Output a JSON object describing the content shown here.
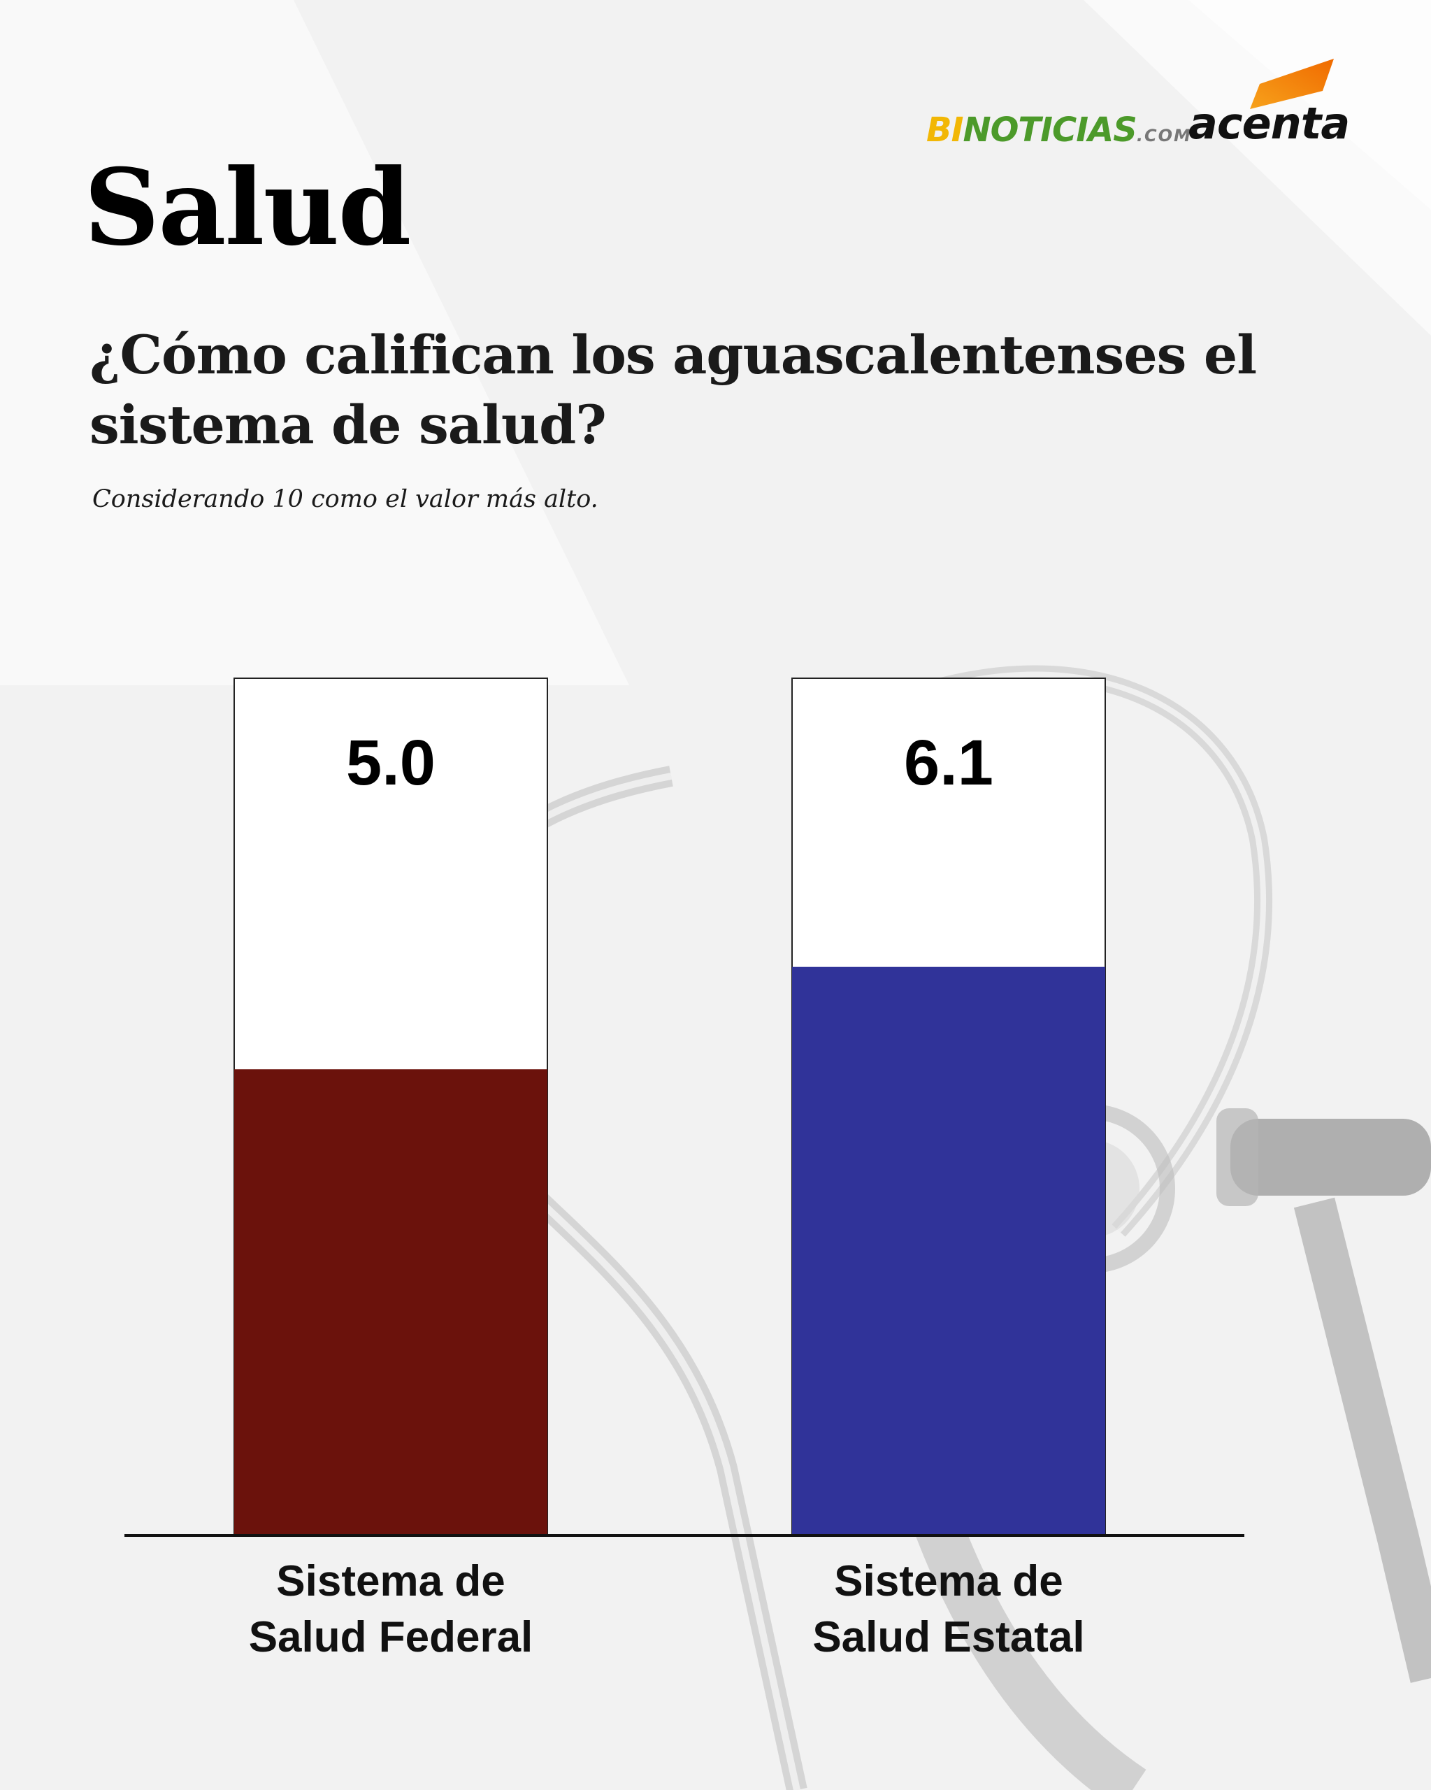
{
  "brand": {
    "bi_prefix": "BI",
    "bi_main": "NOTICIAS",
    "bi_suffix": ".COM",
    "acenta": "acenta",
    "colors": {
      "bi_yellow": "#f2b705",
      "bi_green": "#4c9a2a",
      "acenta_orange": "#f39200"
    }
  },
  "section": "Salud",
  "title": "¿Cómo califican los aguascalentenses el sistema de salud?",
  "subtitle": "Considerando 10 como el valor más alto.",
  "chart_data": {
    "type": "bar",
    "categories": [
      "Sistema de Salud Federal",
      "Sistema de Salud Estatal"
    ],
    "category_lines": [
      [
        "Sistema de",
        "Salud Federal"
      ],
      [
        "Sistema de",
        "Salud Estatal"
      ]
    ],
    "values": [
      5.0,
      6.1
    ],
    "value_labels": [
      "5.0",
      "6.1"
    ],
    "ylim": [
      0,
      9.2
    ],
    "colors": [
      "#6b120c",
      "#303399"
    ],
    "grid": false,
    "legend": "none"
  }
}
